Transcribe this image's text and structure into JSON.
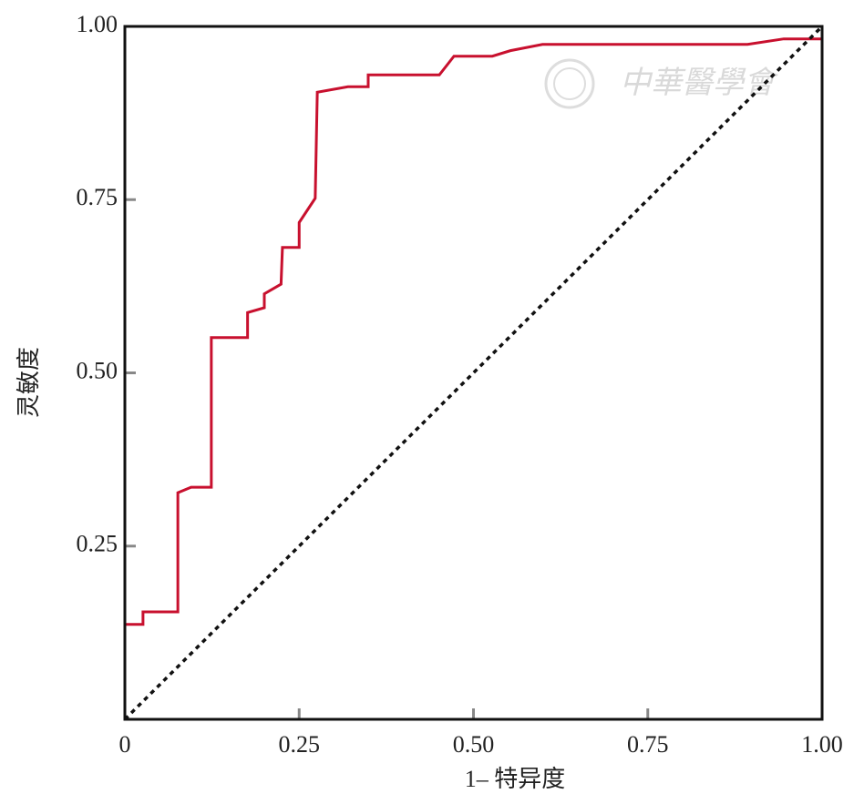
{
  "chart_data": {
    "type": "line",
    "xlabel": "1– 特异度",
    "ylabel": "灵敏度",
    "watermark": "中華醫學會",
    "xlim": [
      0,
      1
    ],
    "ylim": [
      0,
      1
    ],
    "xticks": [
      0,
      0.25,
      {
        "value": 0.5,
        "label": "0.50"
      },
      0.75,
      {
        "value": 1,
        "label": "1.00"
      }
    ],
    "yticks": [
      0.25,
      {
        "value": 0.5,
        "label": "0.50"
      },
      0.75,
      {
        "value": 1,
        "label": "1.00"
      }
    ],
    "series": [
      {
        "color": "#c8102e",
        "dash": false,
        "x": [
          0,
          0,
          0.026,
          0.026,
          0.076,
          0.076,
          0.095,
          0.124,
          0.124,
          0.176,
          0.176,
          0.2,
          0.2,
          0.224,
          0.226,
          0.25,
          0.25,
          0.273,
          0.276,
          0.32,
          0.349,
          0.349,
          0.451,
          0.472,
          0.527,
          0.553,
          0.599,
          0.893,
          0.945,
          1
        ],
        "values": [
          0,
          0.137,
          0.137,
          0.155,
          0.155,
          0.327,
          0.335,
          0.335,
          0.551,
          0.551,
          0.587,
          0.594,
          0.614,
          0.628,
          0.681,
          0.681,
          0.717,
          0.752,
          0.905,
          0.913,
          0.913,
          0.93,
          0.93,
          0.957,
          0.957,
          0.965,
          0.974,
          0.974,
          0.982,
          0.982
        ]
      },
      {
        "color": "#111111",
        "dash": true,
        "x": [
          0,
          1
        ],
        "values": [
          0,
          1
        ]
      }
    ]
  }
}
